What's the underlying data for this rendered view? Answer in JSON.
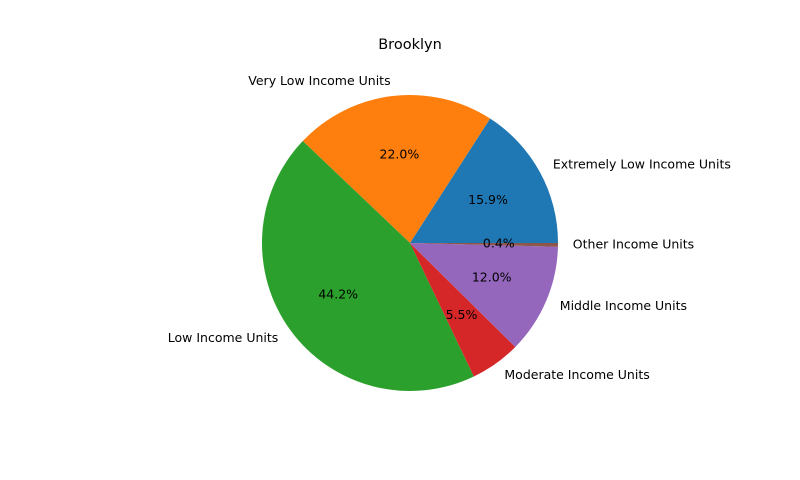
{
  "chart_data": {
    "type": "pie",
    "title": "Brooklyn",
    "slices": [
      {
        "label": "Extremely Low Income Units",
        "value": 15.9,
        "pct_label": "15.9%",
        "color": "#1f77b4"
      },
      {
        "label": "Very Low Income Units",
        "value": 22.0,
        "pct_label": "22.0%",
        "color": "#ff7f0e"
      },
      {
        "label": "Low Income Units",
        "value": 44.2,
        "pct_label": "44.2%",
        "color": "#2ca02c"
      },
      {
        "label": "Moderate Income Units",
        "value": 5.5,
        "pct_label": "5.5%",
        "color": "#d62728"
      },
      {
        "label": "Middle Income Units",
        "value": 12.0,
        "pct_label": "12.0%",
        "color": "#9467bd"
      },
      {
        "label": "Other Income Units",
        "value": 0.4,
        "pct_label": "0.4%",
        "color": "#8c564b"
      }
    ],
    "start_angle_deg": 0,
    "direction": "counterclockwise",
    "legend": "none"
  }
}
